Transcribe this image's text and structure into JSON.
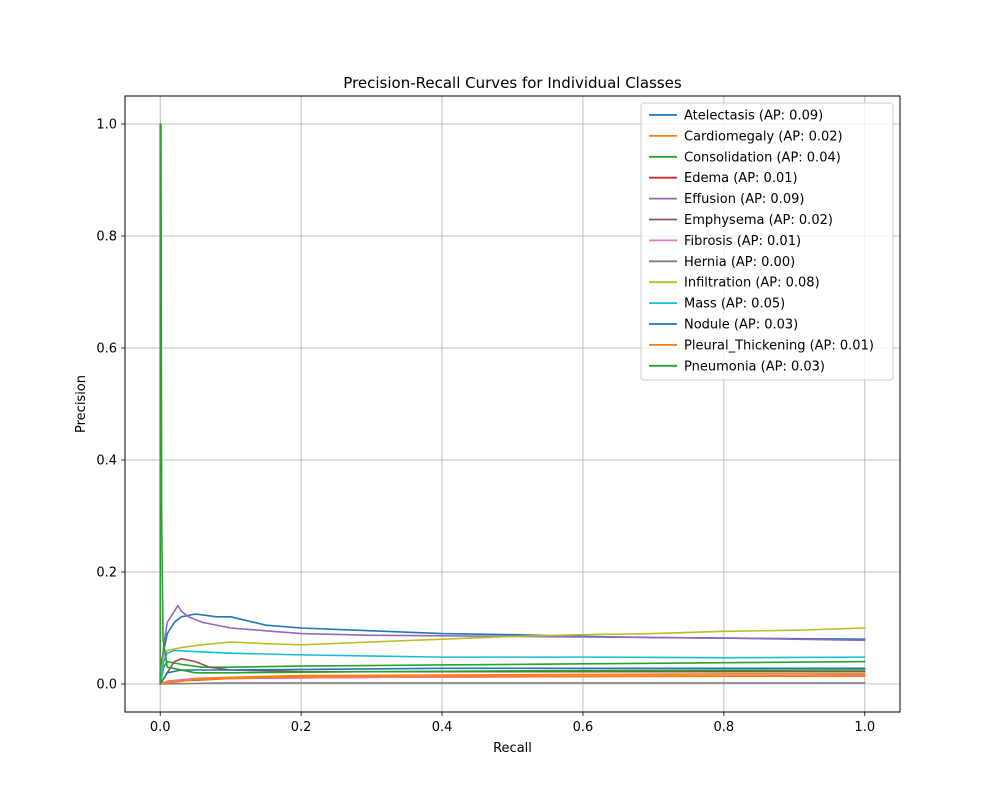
{
  "chart_data": {
    "type": "line",
    "title": "Precision-Recall Curves for Individual Classes",
    "xlabel": "Recall",
    "ylabel": "Precision",
    "xlim": [
      -0.05,
      1.05
    ],
    "ylim": [
      -0.05,
      1.05
    ],
    "xticks": [
      "0.0",
      "0.2",
      "0.4",
      "0.6",
      "0.8",
      "1.0"
    ],
    "yticks": [
      "0.0",
      "0.2",
      "0.4",
      "0.6",
      "0.8",
      "1.0"
    ],
    "grid": true,
    "legend_position": "top-right",
    "series": [
      {
        "name": "Atelectasis (AP: 0.09)",
        "color": "#1f77b4",
        "points": [
          [
            0,
            0.0
          ],
          [
            0,
            0.03
          ],
          [
            0.005,
            0.06
          ],
          [
            0.01,
            0.09
          ],
          [
            0.02,
            0.11
          ],
          [
            0.03,
            0.12
          ],
          [
            0.05,
            0.125
          ],
          [
            0.08,
            0.12
          ],
          [
            0.1,
            0.12
          ],
          [
            0.15,
            0.105
          ],
          [
            0.2,
            0.1
          ],
          [
            0.3,
            0.095
          ],
          [
            0.4,
            0.09
          ],
          [
            0.5,
            0.088
          ],
          [
            0.6,
            0.085
          ],
          [
            0.7,
            0.083
          ],
          [
            0.8,
            0.082
          ],
          [
            0.9,
            0.081
          ],
          [
            1.0,
            0.08
          ]
        ]
      },
      {
        "name": "Cardiomegaly (AP: 0.02)",
        "color": "#ff7f0e",
        "points": [
          [
            0,
            0.0
          ],
          [
            0.01,
            0.005
          ],
          [
            0.05,
            0.01
          ],
          [
            0.1,
            0.012
          ],
          [
            0.2,
            0.015
          ],
          [
            0.4,
            0.016
          ],
          [
            0.6,
            0.017
          ],
          [
            0.8,
            0.018
          ],
          [
            1.0,
            0.018
          ]
        ]
      },
      {
        "name": "Consolidation (AP: 0.04)",
        "color": "#2ca02c",
        "points": [
          [
            0,
            0.0
          ],
          [
            0.005,
            0.03
          ],
          [
            0.01,
            0.04
          ],
          [
            0.03,
            0.035
          ],
          [
            0.06,
            0.03
          ],
          [
            0.1,
            0.03
          ],
          [
            0.2,
            0.032
          ],
          [
            0.4,
            0.034
          ],
          [
            0.6,
            0.036
          ],
          [
            0.8,
            0.038
          ],
          [
            1.0,
            0.04
          ]
        ]
      },
      {
        "name": "Edema (AP: 0.01)",
        "color": "#d62728",
        "points": [
          [
            0,
            0.0
          ],
          [
            0.02,
            0.005
          ],
          [
            0.1,
            0.01
          ],
          [
            0.3,
            0.012
          ],
          [
            0.5,
            0.013
          ],
          [
            0.7,
            0.014
          ],
          [
            1.0,
            0.015
          ]
        ]
      },
      {
        "name": "Effusion (AP: 0.09)",
        "color": "#9467bd",
        "points": [
          [
            0,
            0.0
          ],
          [
            0.005,
            0.07
          ],
          [
            0.01,
            0.11
          ],
          [
            0.02,
            0.13
          ],
          [
            0.025,
            0.14
          ],
          [
            0.03,
            0.13
          ],
          [
            0.04,
            0.12
          ],
          [
            0.06,
            0.11
          ],
          [
            0.1,
            0.1
          ],
          [
            0.15,
            0.095
          ],
          [
            0.2,
            0.09
          ],
          [
            0.3,
            0.087
          ],
          [
            0.4,
            0.086
          ],
          [
            0.5,
            0.085
          ],
          [
            0.6,
            0.084
          ],
          [
            0.8,
            0.082
          ],
          [
            1.0,
            0.078
          ]
        ]
      },
      {
        "name": "Emphysema (AP: 0.02)",
        "color": "#8c564b",
        "points": [
          [
            0,
            0.0
          ],
          [
            0.01,
            0.02
          ],
          [
            0.02,
            0.04
          ],
          [
            0.03,
            0.045
          ],
          [
            0.05,
            0.04
          ],
          [
            0.07,
            0.03
          ],
          [
            0.1,
            0.025
          ],
          [
            0.2,
            0.022
          ],
          [
            0.4,
            0.022
          ],
          [
            0.6,
            0.022
          ],
          [
            1.0,
            0.022
          ]
        ]
      },
      {
        "name": "Fibrosis (AP: 0.01)",
        "color": "#e377c2",
        "points": [
          [
            0,
            0.0
          ],
          [
            0.03,
            0.008
          ],
          [
            0.1,
            0.01
          ],
          [
            0.3,
            0.012
          ],
          [
            0.6,
            0.013
          ],
          [
            1.0,
            0.015
          ]
        ]
      },
      {
        "name": "Hernia (AP: 0.00)",
        "color": "#7f7f7f",
        "points": [
          [
            0,
            0.0
          ],
          [
            0.1,
            0.002
          ],
          [
            0.3,
            0.002
          ],
          [
            0.6,
            0.002
          ],
          [
            1.0,
            0.002
          ]
        ]
      },
      {
        "name": "Infiltration (AP: 0.08)",
        "color": "#bcbd22",
        "points": [
          [
            0,
            0.0
          ],
          [
            0.005,
            0.05
          ],
          [
            0.01,
            0.06
          ],
          [
            0.03,
            0.065
          ],
          [
            0.06,
            0.07
          ],
          [
            0.1,
            0.075
          ],
          [
            0.15,
            0.072
          ],
          [
            0.2,
            0.07
          ],
          [
            0.3,
            0.075
          ],
          [
            0.4,
            0.08
          ],
          [
            0.5,
            0.085
          ],
          [
            0.6,
            0.088
          ],
          [
            0.7,
            0.09
          ],
          [
            0.8,
            0.094
          ],
          [
            0.9,
            0.096
          ],
          [
            1.0,
            0.1
          ]
        ]
      },
      {
        "name": "Mass (AP: 0.05)",
        "color": "#17becf",
        "points": [
          [
            0,
            0.0
          ],
          [
            0.005,
            0.04
          ],
          [
            0.01,
            0.055
          ],
          [
            0.02,
            0.06
          ],
          [
            0.05,
            0.058
          ],
          [
            0.1,
            0.055
          ],
          [
            0.2,
            0.052
          ],
          [
            0.4,
            0.048
          ],
          [
            0.6,
            0.048
          ],
          [
            0.8,
            0.047
          ],
          [
            1.0,
            0.048
          ]
        ]
      },
      {
        "name": "Nodule (AP: 0.03)",
        "color": "#1f77b4",
        "points": [
          [
            0,
            0.0
          ],
          [
            0.01,
            0.02
          ],
          [
            0.03,
            0.025
          ],
          [
            0.06,
            0.025
          ],
          [
            0.1,
            0.025
          ],
          [
            0.2,
            0.026
          ],
          [
            0.4,
            0.028
          ],
          [
            0.6,
            0.028
          ],
          [
            0.8,
            0.028
          ],
          [
            1.0,
            0.028
          ]
        ]
      },
      {
        "name": "Pleural_Thickening (AP: 0.01)",
        "color": "#ff7f0e",
        "points": [
          [
            0,
            0.0
          ],
          [
            0.05,
            0.008
          ],
          [
            0.15,
            0.012
          ],
          [
            0.3,
            0.014
          ],
          [
            0.6,
            0.014
          ],
          [
            1.0,
            0.014
          ]
        ]
      },
      {
        "name": "Pneumonia (AP: 0.03)",
        "color": "#2ca02c",
        "points": [
          [
            0,
            0.0
          ],
          [
            0,
            1.0
          ],
          [
            0.001,
            1.0
          ],
          [
            0.002,
            0.3
          ],
          [
            0.004,
            0.08
          ],
          [
            0.01,
            0.03
          ],
          [
            0.05,
            0.02
          ],
          [
            0.1,
            0.02
          ],
          [
            0.3,
            0.022
          ],
          [
            0.6,
            0.024
          ],
          [
            1.0,
            0.025
          ]
        ]
      }
    ]
  }
}
